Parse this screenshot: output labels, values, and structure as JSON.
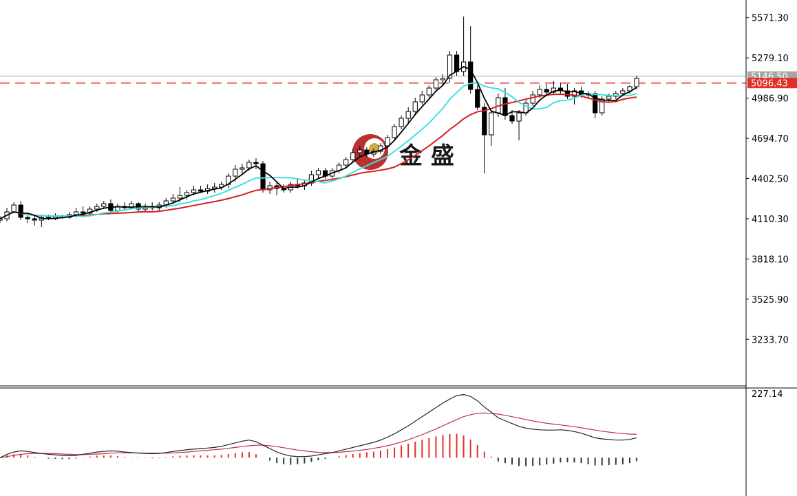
{
  "watermark": {
    "text": "金 盛"
  },
  "price_axis": {
    "ticks": [
      "5571.30",
      "5279.10",
      "4986.90",
      "4694.70",
      "4402.50",
      "4110.30",
      "3818.10",
      "3525.90",
      "3233.70"
    ]
  },
  "price_lines": {
    "bid": {
      "label": "5146.50",
      "value": 5146.5,
      "color": "#a6a6a6"
    },
    "alert": {
      "label": "5096.43",
      "value": 5096.43,
      "color": "#e0302a"
    }
  },
  "macd_axis": {
    "top_label": "227.14"
  },
  "colors": {
    "ma_fast": "#000000",
    "ma_mid": "#3fe0e0",
    "ma_slow": "#d81e1e",
    "macd_line": "#222222",
    "signal_line": "#c0304a",
    "hist_pos": "#e0302a",
    "hist_neg": "#2a3a3a",
    "candle_up": "#ffffff",
    "candle_down": "#000000"
  },
  "chart_data": [
    {
      "type": "candlestick",
      "title": "",
      "ylim": [
        2900,
        5700
      ],
      "ohlc": [
        [
          4100,
          4130,
          4080,
          4110
        ],
        [
          4110,
          4190,
          4090,
          4160
        ],
        [
          4160,
          4230,
          4150,
          4210
        ],
        [
          4210,
          4240,
          4100,
          4120
        ],
        [
          4120,
          4150,
          4080,
          4110
        ],
        [
          4110,
          4130,
          4060,
          4100
        ],
        [
          4100,
          4140,
          4050,
          4120
        ],
        [
          4120,
          4140,
          4100,
          4110
        ],
        [
          4110,
          4150,
          4100,
          4125
        ],
        [
          4125,
          4140,
          4110,
          4120
        ],
        [
          4120,
          4160,
          4110,
          4140
        ],
        [
          4140,
          4190,
          4120,
          4160
        ],
        [
          4160,
          4200,
          4130,
          4150
        ],
        [
          4150,
          4200,
          4130,
          4180
        ],
        [
          4180,
          4220,
          4160,
          4200
        ],
        [
          4200,
          4240,
          4180,
          4220
        ],
        [
          4220,
          4250,
          4150,
          4170
        ],
        [
          4170,
          4220,
          4150,
          4200
        ],
        [
          4200,
          4230,
          4170,
          4190
        ],
        [
          4190,
          4240,
          4180,
          4220
        ],
        [
          4220,
          4230,
          4160,
          4180
        ],
        [
          4180,
          4220,
          4160,
          4200
        ],
        [
          4200,
          4230,
          4170,
          4190
        ],
        [
          4190,
          4230,
          4170,
          4210
        ],
        [
          4210,
          4260,
          4190,
          4240
        ],
        [
          4240,
          4290,
          4220,
          4260
        ],
        [
          4260,
          4340,
          4230,
          4280
        ],
        [
          4280,
          4320,
          4250,
          4300
        ],
        [
          4300,
          4350,
          4280,
          4320
        ],
        [
          4320,
          4350,
          4300,
          4310
        ],
        [
          4310,
          4360,
          4290,
          4330
        ],
        [
          4330,
          4370,
          4300,
          4340
        ],
        [
          4340,
          4380,
          4320,
          4360
        ],
        [
          4360,
          4440,
          4330,
          4420
        ],
        [
          4420,
          4500,
          4380,
          4470
        ],
        [
          4470,
          4510,
          4430,
          4480
        ],
        [
          4480,
          4540,
          4460,
          4520
        ],
        [
          4520,
          4550,
          4470,
          4510
        ],
        [
          4510,
          4530,
          4300,
          4320
        ],
        [
          4320,
          4380,
          4290,
          4350
        ],
        [
          4350,
          4380,
          4280,
          4330
        ],
        [
          4330,
          4360,
          4300,
          4320
        ],
        [
          4320,
          4380,
          4300,
          4360
        ],
        [
          4360,
          4400,
          4330,
          4350
        ],
        [
          4350,
          4390,
          4320,
          4370
        ],
        [
          4370,
          4460,
          4350,
          4430
        ],
        [
          4430,
          4480,
          4400,
          4460
        ],
        [
          4460,
          4480,
          4400,
          4420
        ],
        [
          4420,
          4480,
          4400,
          4460
        ],
        [
          4460,
          4520,
          4440,
          4500
        ],
        [
          4500,
          4560,
          4480,
          4540
        ],
        [
          4540,
          4620,
          4520,
          4590
        ],
        [
          4590,
          4640,
          4560,
          4610
        ],
        [
          4610,
          4630,
          4560,
          4580
        ],
        [
          4580,
          4620,
          4560,
          4600
        ],
        [
          4600,
          4660,
          4580,
          4640
        ],
        [
          4640,
          4720,
          4620,
          4700
        ],
        [
          4700,
          4800,
          4680,
          4780
        ],
        [
          4780,
          4860,
          4760,
          4840
        ],
        [
          4840,
          4920,
          4800,
          4890
        ],
        [
          4890,
          4990,
          4860,
          4960
        ],
        [
          4960,
          5040,
          4940,
          5010
        ],
        [
          5010,
          5080,
          4990,
          5060
        ],
        [
          5060,
          5140,
          5040,
          5120
        ],
        [
          5120,
          5160,
          5080,
          5130
        ],
        [
          5130,
          5330,
          5100,
          5300
        ],
        [
          5300,
          5330,
          5150,
          5180
        ],
        [
          5180,
          5580,
          5150,
          5250
        ],
        [
          5250,
          5510,
          5020,
          5050
        ],
        [
          5050,
          5080,
          4900,
          4920
        ],
        [
          4920,
          4950,
          4440,
          4720
        ],
        [
          4720,
          4900,
          4640,
          4880
        ],
        [
          4880,
          5020,
          4850,
          4990
        ],
        [
          4990,
          5060,
          4830,
          4860
        ],
        [
          4860,
          4900,
          4800,
          4820
        ],
        [
          4820,
          4900,
          4680,
          4880
        ],
        [
          4880,
          4970,
          4860,
          4950
        ],
        [
          4950,
          5040,
          4930,
          5010
        ],
        [
          5010,
          5080,
          4990,
          5050
        ],
        [
          5050,
          5090,
          5000,
          5030
        ],
        [
          5030,
          5110,
          5010,
          5060
        ],
        [
          5060,
          5100,
          5020,
          5040
        ],
        [
          5040,
          5090,
          4980,
          5000
        ],
        [
          5000,
          5060,
          4940,
          5040
        ],
        [
          5040,
          5070,
          4990,
          5010
        ],
        [
          5010,
          5040,
          4980,
          5020
        ],
        [
          5020,
          5040,
          4840,
          4880
        ],
        [
          4880,
          5000,
          4860,
          4980
        ],
        [
          4980,
          5020,
          4960,
          5000
        ],
        [
          5000,
          5040,
          4980,
          5020
        ],
        [
          5020,
          5060,
          5000,
          5040
        ],
        [
          5040,
          5080,
          5020,
          5070
        ],
        [
          5070,
          5150,
          5050,
          5130
        ]
      ]
    },
    {
      "type": "macd",
      "ylim": [
        -120,
        240
      ],
      "macd": [
        0,
        12,
        20,
        24,
        22,
        18,
        15,
        12,
        10,
        8,
        7,
        8,
        12,
        16,
        20,
        22,
        24,
        23,
        20,
        18,
        16,
        15,
        14,
        15,
        18,
        22,
        25,
        28,
        30,
        32,
        34,
        36,
        40,
        46,
        52,
        58,
        62,
        56,
        44,
        32,
        20,
        12,
        6,
        4,
        4,
        6,
        10,
        14,
        18,
        24,
        30,
        36,
        42,
        48,
        54,
        62,
        72,
        84,
        98,
        112,
        128,
        144,
        160,
        176,
        192,
        206,
        218,
        222,
        215,
        200,
        178,
        160,
        140,
        130,
        120,
        110,
        104,
        100,
        98,
        97,
        97,
        98,
        96,
        92,
        86,
        78,
        70,
        66,
        64,
        62,
        62,
        64,
        70
      ],
      "signal": [
        0,
        4,
        8,
        12,
        14,
        15,
        15,
        15,
        14,
        13,
        12,
        11,
        11,
        12,
        13,
        14,
        16,
        17,
        17,
        17,
        17,
        16,
        16,
        16,
        16,
        17,
        18,
        20,
        22,
        24,
        26,
        28,
        30,
        33,
        36,
        39,
        42,
        44,
        44,
        42,
        39,
        35,
        31,
        27,
        24,
        21,
        19,
        18,
        18,
        19,
        21,
        23,
        26,
        29,
        33,
        37,
        42,
        48,
        55,
        63,
        72,
        81,
        91,
        101,
        112,
        123,
        134,
        144,
        151,
        156,
        157,
        156,
        153,
        149,
        144,
        139,
        134,
        129,
        125,
        121,
        118,
        115,
        112,
        109,
        105,
        101,
        97,
        93,
        90,
        87,
        85,
        83,
        82
      ],
      "histogram": [
        0,
        8,
        12,
        12,
        8,
        3,
        0,
        -3,
        -4,
        -5,
        -5,
        -3,
        1,
        4,
        7,
        8,
        8,
        6,
        3,
        1,
        -1,
        -1,
        -2,
        -1,
        2,
        5,
        7,
        8,
        8,
        8,
        8,
        8,
        10,
        13,
        16,
        19,
        20,
        12,
        0,
        -10,
        -19,
        -23,
        -25,
        -23,
        -20,
        -15,
        -9,
        -4,
        0,
        5,
        9,
        13,
        16,
        19,
        21,
        25,
        30,
        36,
        43,
        49,
        56,
        63,
        69,
        75,
        80,
        83,
        84,
        78,
        64,
        44,
        21,
        4,
        -13,
        -19,
        -24,
        -29,
        -30,
        -29,
        -27,
        -24,
        -21,
        -17,
        -16,
        -17,
        -19,
        -23,
        -27,
        -27,
        -26,
        -25,
        -23,
        -19,
        -12
      ]
    }
  ]
}
